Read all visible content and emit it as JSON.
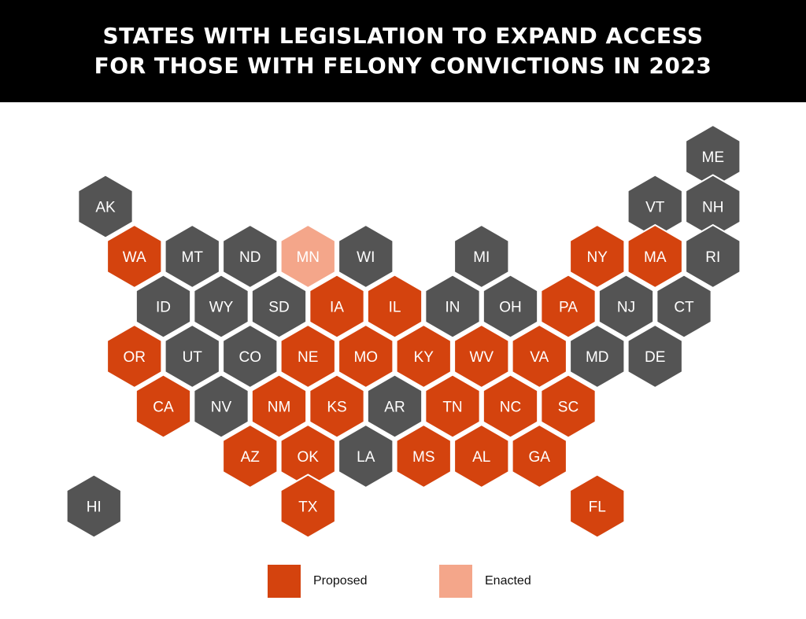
{
  "header": {
    "title_line1": "STATES WITH LEGISLATION TO EXPAND ACCESS",
    "title_line2": "FOR THOSE WITH FELONY CONVICTIONS IN 2023"
  },
  "colors": {
    "header_bg": "#000000",
    "title_text": "#ffffff",
    "none": "#545454",
    "proposed": "#d4430e",
    "enacted": "#f4a68a",
    "hex_text": "#ffffff"
  },
  "legend": {
    "proposed_label": "Proposed",
    "enacted_label": "Enacted"
  },
  "states": [
    {
      "abbr": "ME",
      "row": 0,
      "col": 10.5,
      "status": "none"
    },
    {
      "abbr": "AK",
      "row": 1,
      "col": 0,
      "status": "none"
    },
    {
      "abbr": "VT",
      "row": 1,
      "col": 9.5,
      "status": "none"
    },
    {
      "abbr": "NH",
      "row": 1,
      "col": 10.5,
      "status": "none"
    },
    {
      "abbr": "WA",
      "row": 2,
      "col": 0.5,
      "status": "proposed"
    },
    {
      "abbr": "MT",
      "row": 2,
      "col": 1.5,
      "status": "none"
    },
    {
      "abbr": "ND",
      "row": 2,
      "col": 2.5,
      "status": "none"
    },
    {
      "abbr": "MN",
      "row": 2,
      "col": 3.5,
      "status": "enacted"
    },
    {
      "abbr": "WI",
      "row": 2,
      "col": 4.5,
      "status": "none"
    },
    {
      "abbr": "MI",
      "row": 2,
      "col": 6.5,
      "status": "none"
    },
    {
      "abbr": "NY",
      "row": 2,
      "col": 8.5,
      "status": "proposed"
    },
    {
      "abbr": "MA",
      "row": 2,
      "col": 9.5,
      "status": "proposed"
    },
    {
      "abbr": "RI",
      "row": 2,
      "col": 10.5,
      "status": "none"
    },
    {
      "abbr": "ID",
      "row": 3,
      "col": 1,
      "status": "none"
    },
    {
      "abbr": "WY",
      "row": 3,
      "col": 2,
      "status": "none"
    },
    {
      "abbr": "SD",
      "row": 3,
      "col": 3,
      "status": "none"
    },
    {
      "abbr": "IA",
      "row": 3,
      "col": 4,
      "status": "proposed"
    },
    {
      "abbr": "IL",
      "row": 3,
      "col": 5,
      "status": "proposed"
    },
    {
      "abbr": "IN",
      "row": 3,
      "col": 6,
      "status": "none"
    },
    {
      "abbr": "OH",
      "row": 3,
      "col": 7,
      "status": "none"
    },
    {
      "abbr": "PA",
      "row": 3,
      "col": 8,
      "status": "proposed"
    },
    {
      "abbr": "NJ",
      "row": 3,
      "col": 9,
      "status": "none"
    },
    {
      "abbr": "CT",
      "row": 3,
      "col": 10,
      "status": "none"
    },
    {
      "abbr": "OR",
      "row": 4,
      "col": 0.5,
      "status": "proposed"
    },
    {
      "abbr": "UT",
      "row": 4,
      "col": 1.5,
      "status": "none"
    },
    {
      "abbr": "CO",
      "row": 4,
      "col": 2.5,
      "status": "none"
    },
    {
      "abbr": "NE",
      "row": 4,
      "col": 3.5,
      "status": "proposed"
    },
    {
      "abbr": "MO",
      "row": 4,
      "col": 4.5,
      "status": "proposed"
    },
    {
      "abbr": "KY",
      "row": 4,
      "col": 5.5,
      "status": "proposed"
    },
    {
      "abbr": "WV",
      "row": 4,
      "col": 6.5,
      "status": "proposed"
    },
    {
      "abbr": "VA",
      "row": 4,
      "col": 7.5,
      "status": "proposed"
    },
    {
      "abbr": "MD",
      "row": 4,
      "col": 8.5,
      "status": "none"
    },
    {
      "abbr": "DE",
      "row": 4,
      "col": 9.5,
      "status": "none"
    },
    {
      "abbr": "CA",
      "row": 5,
      "col": 1,
      "status": "proposed"
    },
    {
      "abbr": "NV",
      "row": 5,
      "col": 2,
      "status": "none"
    },
    {
      "abbr": "NM",
      "row": 5,
      "col": 3,
      "status": "proposed"
    },
    {
      "abbr": "KS",
      "row": 5,
      "col": 4,
      "status": "proposed"
    },
    {
      "abbr": "AR",
      "row": 5,
      "col": 5,
      "status": "none"
    },
    {
      "abbr": "TN",
      "row": 5,
      "col": 6,
      "status": "proposed"
    },
    {
      "abbr": "NC",
      "row": 5,
      "col": 7,
      "status": "proposed"
    },
    {
      "abbr": "SC",
      "row": 5,
      "col": 8,
      "status": "proposed"
    },
    {
      "abbr": "AZ",
      "row": 6,
      "col": 2.5,
      "status": "proposed"
    },
    {
      "abbr": "OK",
      "row": 6,
      "col": 3.5,
      "status": "proposed"
    },
    {
      "abbr": "LA",
      "row": 6,
      "col": 4.5,
      "status": "none"
    },
    {
      "abbr": "MS",
      "row": 6,
      "col": 5.5,
      "status": "proposed"
    },
    {
      "abbr": "AL",
      "row": 6,
      "col": 6.5,
      "status": "proposed"
    },
    {
      "abbr": "GA",
      "row": 6,
      "col": 7.5,
      "status": "proposed"
    },
    {
      "abbr": "HI",
      "row": 7,
      "col": -0.2,
      "status": "none"
    },
    {
      "abbr": "TX",
      "row": 7,
      "col": 3.5,
      "status": "proposed"
    },
    {
      "abbr": "FL",
      "row": 7,
      "col": 8.5,
      "status": "proposed"
    }
  ]
}
